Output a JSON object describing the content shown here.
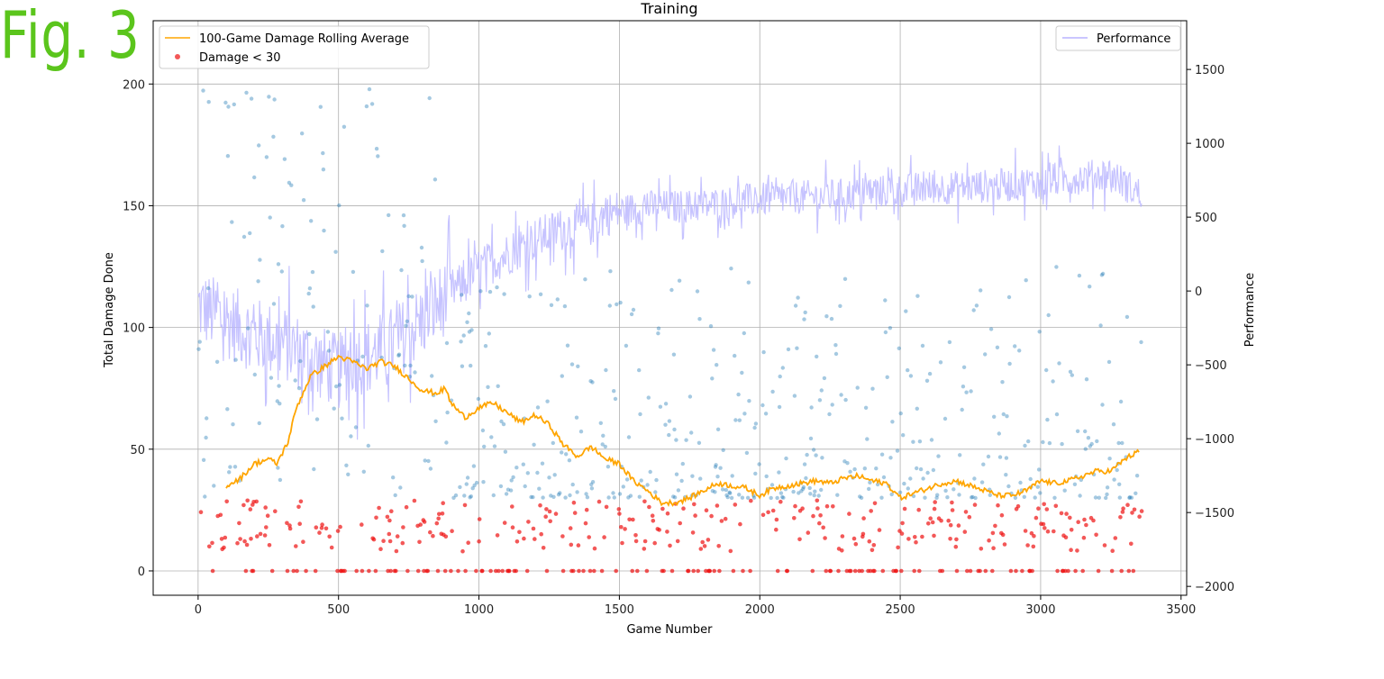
{
  "figure_label": "Fig. 3",
  "chart_data": {
    "type": "scatter",
    "title": "Training",
    "xlabel": "Game Number",
    "ylabel": "Total Damage Done",
    "y2label": "Performance",
    "xlim": [
      -160,
      3520
    ],
    "ylim": [
      -10,
      226
    ],
    "y2lim": [
      -2060,
      1830
    ],
    "xticks": [
      0,
      500,
      1000,
      1500,
      2000,
      2500,
      3000,
      3500
    ],
    "yticks": [
      0,
      50,
      100,
      150,
      200
    ],
    "y2ticks": [
      -2000,
      -1500,
      -1000,
      -500,
      0,
      500,
      1000,
      1500
    ],
    "grid": true,
    "legend_left": {
      "placement": "upper-left",
      "entries": [
        "100-Game Damage Rolling Average",
        "Damage < 30"
      ]
    },
    "legend_right": {
      "placement": "upper-right",
      "entries": [
        "Performance"
      ]
    },
    "colors": {
      "rolling_average": "#ffa500",
      "low_damage": "#ee1111",
      "damage_points": "#1f77b4",
      "performance": "#b8b4ff",
      "fig_label": "#5bc51c"
    },
    "series": [
      {
        "name": "100-Game Damage Rolling Average",
        "kind": "line",
        "axis": "left",
        "x": [
          100,
          150,
          200,
          250,
          280,
          320,
          350,
          400,
          450,
          500,
          550,
          600,
          650,
          700,
          750,
          800,
          850,
          880,
          900,
          950,
          1000,
          1050,
          1100,
          1150,
          1200,
          1250,
          1300,
          1350,
          1400,
          1450,
          1500,
          1550,
          1600,
          1650,
          1700,
          1750,
          1800,
          1850,
          1900,
          1950,
          2000,
          2050,
          2100,
          2150,
          2200,
          2250,
          2300,
          2350,
          2400,
          2450,
          2500,
          2550,
          2600,
          2650,
          2700,
          2750,
          2800,
          2850,
          2900,
          2950,
          3000,
          3050,
          3100,
          3150,
          3200,
          3250,
          3300,
          3350
        ],
        "y": [
          35,
          38,
          44,
          46,
          44,
          53,
          67,
          80,
          84,
          88,
          86,
          83,
          86,
          84,
          79,
          74,
          73,
          75,
          69,
          63,
          67,
          69,
          65,
          61,
          64,
          60,
          52,
          47,
          51,
          46,
          44,
          37,
          33,
          28,
          28,
          30,
          33,
          36,
          35,
          34,
          31,
          34,
          35,
          36,
          37,
          36,
          38,
          39,
          37,
          36,
          30,
          32,
          34,
          36,
          37,
          35,
          33,
          31,
          31,
          33,
          37,
          36,
          37,
          39,
          41,
          41,
          46,
          49
        ]
      },
      {
        "name": "Performance",
        "kind": "line",
        "axis": "right",
        "x": [
          0,
          100,
          200,
          300,
          350,
          400,
          450,
          500,
          550,
          600,
          700,
          800,
          850,
          900,
          950,
          1000,
          1050,
          1100,
          1200,
          1300,
          1400,
          1450,
          1500,
          1600,
          1700,
          1800,
          1900,
          2000,
          2100,
          2200,
          2300,
          2400,
          2500,
          2600,
          2700,
          2800,
          2900,
          3000,
          3100,
          3200,
          3250,
          3300,
          3360
        ],
        "y": [
          -100,
          -200,
          -300,
          -350,
          -400,
          -450,
          -500,
          -550,
          -450,
          -450,
          -350,
          -200,
          -100,
          0,
          50,
          150,
          200,
          250,
          350,
          420,
          450,
          520,
          540,
          570,
          570,
          580,
          600,
          620,
          630,
          640,
          650,
          670,
          680,
          700,
          700,
          710,
          720,
          740,
          760,
          780,
          800,
          720,
          650
        ]
      },
      {
        "name": "Damage < 30",
        "kind": "scatter",
        "axis": "left",
        "description_values": "dense band of games with damage between 0 and 30, many at exactly 0"
      }
    ]
  }
}
